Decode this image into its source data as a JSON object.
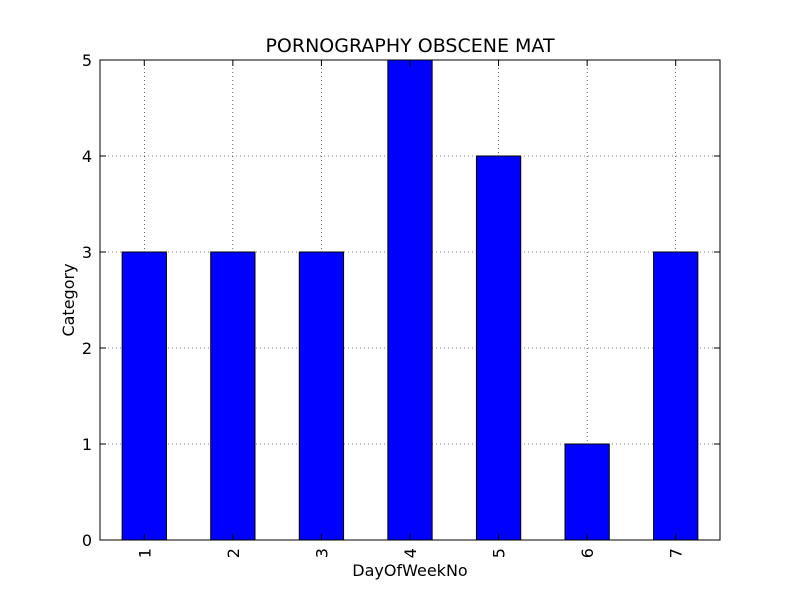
{
  "chart_data": {
    "type": "bar",
    "title": "PORNOGRAPHY OBSCENE MAT",
    "xlabel": "DayOfWeekNo",
    "ylabel": "Category",
    "categories": [
      "1",
      "2",
      "3",
      "4",
      "5",
      "6",
      "7"
    ],
    "values": [
      3,
      3,
      3,
      5,
      4,
      1,
      3
    ],
    "ylim": [
      0,
      5
    ],
    "yticks": [
      "0",
      "1",
      "2",
      "3",
      "4",
      "5"
    ],
    "grid": true,
    "bar_color": "#0000ff",
    "edge_color": "#000000",
    "grid_color": "#000000"
  }
}
